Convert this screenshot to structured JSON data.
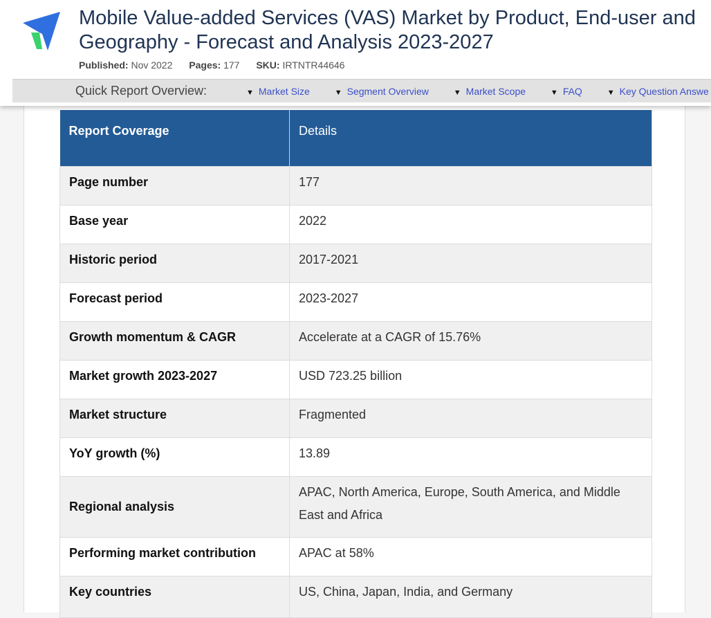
{
  "header": {
    "title_line1": "Mobile Value-added Services (VAS) Market by Product, End-user and",
    "title_line2": "Geography - Forecast and Analysis 2023-2027",
    "published_label": "Published:",
    "published_value": "Nov 2022",
    "pages_label": "Pages:",
    "pages_value": "177",
    "sku_label": "SKU:",
    "sku_value": "IRTNTR44646"
  },
  "quick_nav": {
    "title": "Quick Report Overview:",
    "links": [
      "Market Size",
      "Segment Overview",
      "Market Scope",
      "FAQ",
      "Key Question Answe"
    ]
  },
  "table": {
    "header": [
      "Report Coverage",
      "Details"
    ],
    "rows": [
      {
        "key": "Page number",
        "value": "177"
      },
      {
        "key": "Base year",
        "value": "2022"
      },
      {
        "key": "Historic period",
        "value": "2017-2021"
      },
      {
        "key": "Forecast period",
        "value": "2023-2027"
      },
      {
        "key": "Growth momentum & CAGR",
        "value": "Accelerate at a CAGR of 15.76%"
      },
      {
        "key": "Market growth 2023-2027",
        "value": "USD 723.25 billion"
      },
      {
        "key": "Market structure",
        "value": "Fragmented"
      },
      {
        "key": "YoY growth (%)",
        "value": "13.89"
      },
      {
        "key": "Regional analysis",
        "value": "APAC, North America, Europe, South America, and Middle East and Africa"
      },
      {
        "key": "Performing market contribution",
        "value": "APAC at 58%"
      },
      {
        "key": "Key countries",
        "value": "US, China, Japan, India, and Germany"
      }
    ]
  },
  "colors": {
    "title": "#1f3353",
    "table_header_bg": "#235b96",
    "nav_link": "#3b4fc7",
    "logo_blue": "#2f6fe0",
    "logo_green": "#3bd16f"
  }
}
